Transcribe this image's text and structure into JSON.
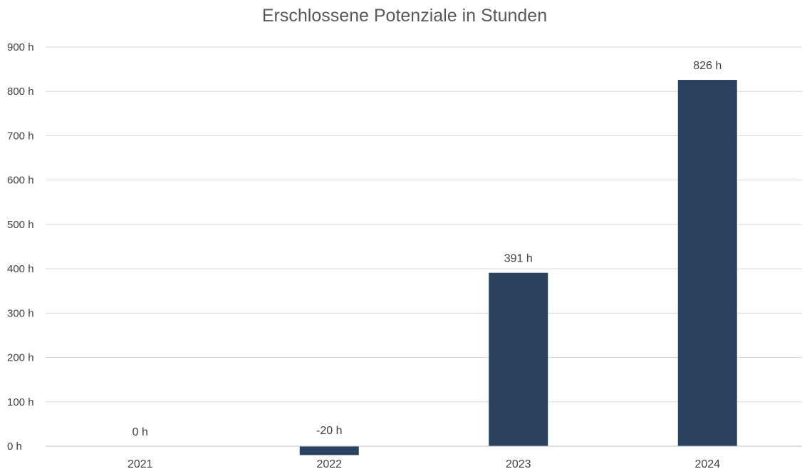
{
  "chart_data": {
    "type": "bar",
    "title": "Erschlossene Potenziale in Stunden",
    "xlabel": "",
    "ylabel": "",
    "categories": [
      "2021",
      "2022",
      "2023",
      "2024"
    ],
    "values": [
      0,
      -20,
      391,
      826
    ],
    "data_labels": [
      "0 h",
      "-20 h",
      "391 h",
      "826 h"
    ],
    "ylim": [
      0,
      900
    ],
    "yticks": [
      0,
      100,
      200,
      300,
      400,
      500,
      600,
      700,
      800,
      900
    ],
    "ytick_labels": [
      "0 h",
      "100 h",
      "200 h",
      "300 h",
      "400 h",
      "500 h",
      "600 h",
      "700 h",
      "800 h",
      "900 h"
    ],
    "grid": true,
    "legend": "none",
    "bar_color": "#2a4260"
  }
}
